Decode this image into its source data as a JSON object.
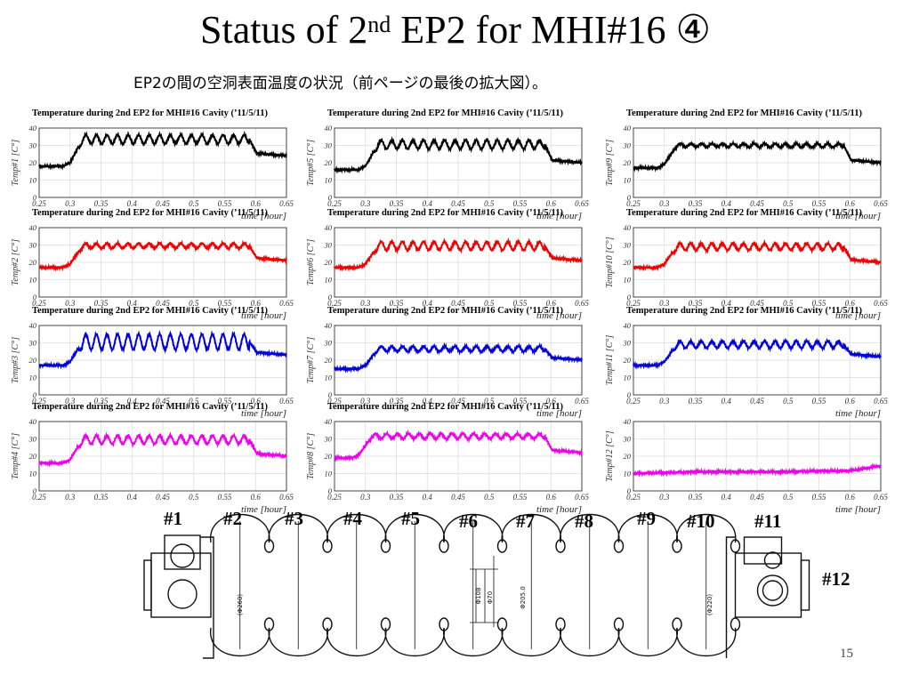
{
  "slide": {
    "title_pre": "Status of 2",
    "title_sup": "nd",
    "title_post": " EP2 for MHI#16 ④",
    "subtitle": "EP2の間の空洞表面温度の状況（前ページの最後の拡大図）。",
    "page_number": "15"
  },
  "cavity": {
    "cell_labels": [
      "#1",
      "#2",
      "#3",
      "#4",
      "#5",
      "#6",
      "#7",
      "#8",
      "#9",
      "#10",
      "#11"
    ],
    "label_12": "#12",
    "drawing_annotations": [
      "(Φ260)",
      "Φ108",
      "Φ70",
      "Φ205.0",
      "(Φ220)"
    ]
  },
  "chart_data": [
    {
      "type": "line",
      "title": "Temperature during 2nd EP2 for MHI#16 Cavity ('11/5/11)",
      "ylabel": "Temp#1 [C°]",
      "xlabel": "time [hour]",
      "xlim": [
        0.25,
        0.65
      ],
      "ylim": [
        0,
        40
      ],
      "x_ticks": [
        "0.25",
        "0.3",
        "0.35",
        "0.4",
        "0.45",
        "0.5",
        "0.55",
        "0.6",
        "0.65"
      ],
      "y_ticks": [
        "0",
        "10",
        "20",
        "30",
        "40"
      ],
      "color": "#000000",
      "series": [
        {
          "baseline_start": 18,
          "baseline_end": 24,
          "plateau_low": 31,
          "plateau_high": 36,
          "ep_start": 0.3,
          "ep_end": 0.59,
          "oscillations": 17
        }
      ]
    },
    {
      "type": "line",
      "title": "Temperature during 2nd EP2 for MHI#16 Cavity ('11/5/11)",
      "ylabel": "Temp#2 [C°]",
      "xlabel": "time [hour]",
      "xlim": [
        0.25,
        0.65
      ],
      "ylim": [
        0,
        40
      ],
      "x_ticks": [
        "0.25",
        "0.3",
        "0.35",
        "0.4",
        "0.45",
        "0.5",
        "0.55",
        "0.6",
        "0.65"
      ],
      "y_ticks": [
        "0",
        "10",
        "20",
        "30",
        "40"
      ],
      "color": "#ee0000",
      "series": [
        {
          "baseline_start": 17,
          "baseline_end": 21,
          "plateau_low": 28,
          "plateau_high": 31,
          "ep_start": 0.3,
          "ep_end": 0.59,
          "oscillations": 17
        }
      ]
    },
    {
      "type": "line",
      "title": "Temperature during 2nd EP2 for MHI#16 Cavity ('11/5/11)",
      "ylabel": "Temp#3 [C°]",
      "xlabel": "time [hour]",
      "xlim": [
        0.25,
        0.65
      ],
      "ylim": [
        0,
        40
      ],
      "x_ticks": [
        "0.25",
        "0.3",
        "0.35",
        "0.4",
        "0.45",
        "0.5",
        "0.55",
        "0.6",
        "0.65"
      ],
      "y_ticks": [
        "0",
        "10",
        "20",
        "30",
        "40"
      ],
      "color": "#0000dd",
      "series": [
        {
          "baseline_start": 17,
          "baseline_end": 23,
          "plateau_low": 26,
          "plateau_high": 35,
          "ep_start": 0.3,
          "ep_end": 0.59,
          "oscillations": 17
        }
      ]
    },
    {
      "type": "line",
      "title": "Temperature during 2nd EP2 for MHI#16 Cavity ('11/5/11)",
      "ylabel": "Temp#4 [C°]",
      "xlabel": "time [hour]",
      "xlim": [
        0.25,
        0.65
      ],
      "ylim": [
        0,
        40
      ],
      "x_ticks": [
        "0.25",
        "0.3",
        "0.35",
        "0.4",
        "0.45",
        "0.5",
        "0.55",
        "0.6",
        "0.65"
      ],
      "y_ticks": [
        "0",
        "10",
        "20",
        "30",
        "40"
      ],
      "color": "#ee00ee",
      "series": [
        {
          "baseline_start": 16,
          "baseline_end": 20,
          "plateau_low": 27,
          "plateau_high": 32,
          "ep_start": 0.3,
          "ep_end": 0.59,
          "oscillations": 17
        }
      ]
    },
    {
      "type": "line",
      "title": "Temperature during 2nd EP2 for MHI#16 Cavity ('11/5/11)",
      "ylabel": "Temp#5 [C°]",
      "xlabel": "time [hour]",
      "xlim": [
        0.25,
        0.65
      ],
      "ylim": [
        0,
        40
      ],
      "x_ticks": [
        "0.25",
        "0.3",
        "0.35",
        "0.4",
        "0.45",
        "0.5",
        "0.55",
        "0.6",
        "0.65"
      ],
      "y_ticks": [
        "0",
        "10",
        "20",
        "30",
        "40"
      ],
      "color": "#000000",
      "series": [
        {
          "baseline_start": 16,
          "baseline_end": 20,
          "plateau_low": 28,
          "plateau_high": 33,
          "ep_start": 0.3,
          "ep_end": 0.59,
          "oscillations": 17
        }
      ]
    },
    {
      "type": "line",
      "title": "Temperature during 2nd EP2 for MHI#16 Cavity ('11/5/11)",
      "ylabel": "Temp#6 [C°]",
      "xlabel": "time [hour]",
      "xlim": [
        0.25,
        0.65
      ],
      "ylim": [
        0,
        40
      ],
      "x_ticks": [
        "0.25",
        "0.3",
        "0.35",
        "0.4",
        "0.45",
        "0.5",
        "0.55",
        "0.6",
        "0.65"
      ],
      "y_ticks": [
        "0",
        "10",
        "20",
        "30",
        "40"
      ],
      "color": "#ee0000",
      "series": [
        {
          "baseline_start": 17,
          "baseline_end": 21,
          "plateau_low": 27,
          "plateau_high": 32,
          "ep_start": 0.3,
          "ep_end": 0.59,
          "oscillations": 17
        }
      ]
    },
    {
      "type": "line",
      "title": "Temperature during 2nd EP2 for MHI#16 Cavity ('11/5/11)",
      "ylabel": "Temp#7 [C°]",
      "xlabel": "time [hour]",
      "xlim": [
        0.25,
        0.65
      ],
      "ylim": [
        0,
        40
      ],
      "x_ticks": [
        "0.25",
        "0.3",
        "0.35",
        "0.4",
        "0.45",
        "0.5",
        "0.55",
        "0.6",
        "0.65"
      ],
      "y_ticks": [
        "0",
        "10",
        "20",
        "30",
        "40"
      ],
      "color": "#0000dd",
      "series": [
        {
          "baseline_start": 15,
          "baseline_end": 20,
          "plateau_low": 25,
          "plateau_high": 28,
          "ep_start": 0.3,
          "ep_end": 0.59,
          "oscillations": 17
        }
      ]
    },
    {
      "type": "line",
      "title": "Temperature during 2nd EP2 for MHI#16 Cavity ('11/5/11)",
      "ylabel": "Temp#8 [C°]",
      "xlabel": "time [hour]",
      "xlim": [
        0.25,
        0.65
      ],
      "ylim": [
        0,
        40
      ],
      "x_ticks": [
        "0.25",
        "0.3",
        "0.35",
        "0.4",
        "0.45",
        "0.5",
        "0.55",
        "0.6",
        "0.65"
      ],
      "y_ticks": [
        "0",
        "10",
        "20",
        "30",
        "40"
      ],
      "color": "#ee00ee",
      "series": [
        {
          "baseline_start": 19,
          "baseline_end": 22,
          "plateau_low": 30,
          "plateau_high": 33,
          "ep_start": 0.29,
          "ep_end": 0.59,
          "oscillations": 17
        }
      ]
    },
    {
      "type": "line",
      "title": "Temperature during 2nd EP2 for MHI#16 Cavity ('11/5/11)",
      "ylabel": "Temp#9 [C°]",
      "xlabel": "time [hour]",
      "xlim": [
        0.25,
        0.65
      ],
      "ylim": [
        0,
        40
      ],
      "x_ticks": [
        "0.25",
        "0.3",
        "0.35",
        "0.4",
        "0.45",
        "0.5",
        "0.55",
        "0.6",
        "0.65"
      ],
      "y_ticks": [
        "0",
        "10",
        "20",
        "30",
        "40"
      ],
      "color": "#000000",
      "series": [
        {
          "baseline_start": 17,
          "baseline_end": 20,
          "plateau_low": 29,
          "plateau_high": 31,
          "ep_start": 0.3,
          "ep_end": 0.59,
          "oscillations": 17
        }
      ]
    },
    {
      "type": "line",
      "title": "Temperature during 2nd EP2 for MHI#16 Cavity ('11/5/11)",
      "ylabel": "Temp#10 [C°]",
      "xlabel": "time [hour]",
      "xlim": [
        0.25,
        0.65
      ],
      "ylim": [
        0,
        40
      ],
      "x_ticks": [
        "0.25",
        "0.3",
        "0.35",
        "0.4",
        "0.45",
        "0.5",
        "0.55",
        "0.6",
        "0.65"
      ],
      "y_ticks": [
        "0",
        "10",
        "20",
        "30",
        "40"
      ],
      "color": "#ee0000",
      "series": [
        {
          "baseline_start": 17,
          "baseline_end": 20,
          "plateau_low": 27,
          "plateau_high": 31,
          "ep_start": 0.3,
          "ep_end": 0.59,
          "oscillations": 17
        }
      ]
    },
    {
      "type": "line",
      "title": "Temperature during 2nd EP2 for MHI#16 Cavity ('11/5/11)",
      "ylabel": "Temp#11 [C°]",
      "xlabel": "time [hour]",
      "xlim": [
        0.25,
        0.65
      ],
      "ylim": [
        0,
        40
      ],
      "x_ticks": [
        "0.25",
        "0.3",
        "0.35",
        "0.4",
        "0.45",
        "0.5",
        "0.55",
        "0.6",
        "0.65"
      ],
      "y_ticks": [
        "0",
        "10",
        "20",
        "30",
        "40"
      ],
      "color": "#0000dd",
      "series": [
        {
          "baseline_start": 17,
          "baseline_end": 22,
          "plateau_low": 27,
          "plateau_high": 31,
          "ep_start": 0.3,
          "ep_end": 0.59,
          "oscillations": 17
        }
      ]
    },
    {
      "type": "line",
      "title": "",
      "ylabel": "Temp#12 [C°]",
      "xlabel": "time [hour]",
      "xlim": [
        0.25,
        0.65
      ],
      "ylim": [
        0,
        40
      ],
      "x_ticks": [
        "0.25",
        "0.3",
        "0.35",
        "0.4",
        "0.45",
        "0.5",
        "0.55",
        "0.6",
        "0.65"
      ],
      "y_ticks": [
        "0",
        "10",
        "20",
        "30",
        "40"
      ],
      "color": "#ee00ee",
      "series": [
        {
          "points": [
            [
              0.25,
              10
            ],
            [
              0.3,
              10.5
            ],
            [
              0.35,
              11
            ],
            [
              0.4,
              11
            ],
            [
              0.45,
              11
            ],
            [
              0.5,
              11
            ],
            [
              0.55,
              11.5
            ],
            [
              0.6,
              11.5
            ],
            [
              0.65,
              14.5
            ]
          ]
        }
      ]
    }
  ]
}
